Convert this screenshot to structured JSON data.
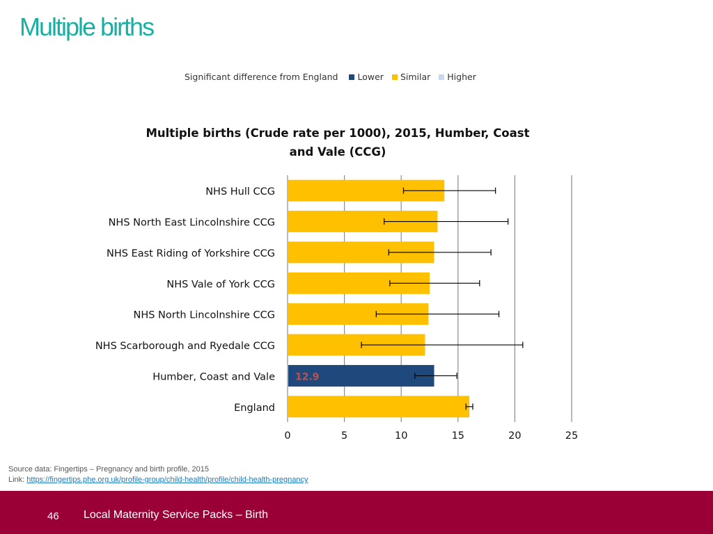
{
  "page_title": "Multiple births",
  "legend": {
    "label": "Significant difference from England",
    "items": [
      {
        "name": "Lower",
        "color": "#1f497d"
      },
      {
        "name": "Similar",
        "color": "#ffc000"
      },
      {
        "name": "Higher",
        "color": "#c6d9f1"
      }
    ]
  },
  "chart_data": {
    "type": "bar",
    "orientation": "horizontal",
    "title": "Multiple births (Crude rate per 1000), 2015, Humber, Coast and Vale (CCG)",
    "title_lines": [
      "Multiple births (Crude rate per 1000), 2015, Humber, Coast",
      "and Vale (CCG)"
    ],
    "xlim": [
      0,
      25
    ],
    "xticks": [
      "0",
      "5",
      "10",
      "15",
      "20",
      "25"
    ],
    "grid": true,
    "categories": [
      "NHS Hull CCG",
      "NHS North East Lincolnshire CCG",
      "NHS East Riding of Yorkshire CCG",
      "NHS Vale of York CCG",
      "NHS North Lincolnshire CCG",
      "NHS Scarborough and Ryedale CCG",
      "Humber, Coast and Vale",
      "England"
    ],
    "values": [
      13.8,
      13.2,
      12.9,
      12.5,
      12.4,
      12.1,
      12.9,
      16.0
    ],
    "ci_lower": [
      10.2,
      8.5,
      8.9,
      9.0,
      7.8,
      6.5,
      11.2,
      15.7
    ],
    "ci_upper": [
      18.3,
      19.4,
      17.9,
      16.9,
      18.6,
      20.7,
      14.9,
      16.3
    ],
    "bar_colors": [
      "#ffc000",
      "#ffc000",
      "#ffc000",
      "#ffc000",
      "#ffc000",
      "#ffc000",
      "#1f497d",
      "#ffc000"
    ],
    "data_labels": {
      "6": "12.9"
    },
    "data_label_color": "#c0504d"
  },
  "source": {
    "line1": "Source data: Fingertips – Pregnancy and birth profile, 2015",
    "link_prefix": "Link: ",
    "link_text": "https://fingertips.phe.org.uk/profile-group/child-health/profile/child-health-pregnancy"
  },
  "footer": {
    "page_number": "46",
    "text": "Local Maternity Service Packs – Birth"
  }
}
